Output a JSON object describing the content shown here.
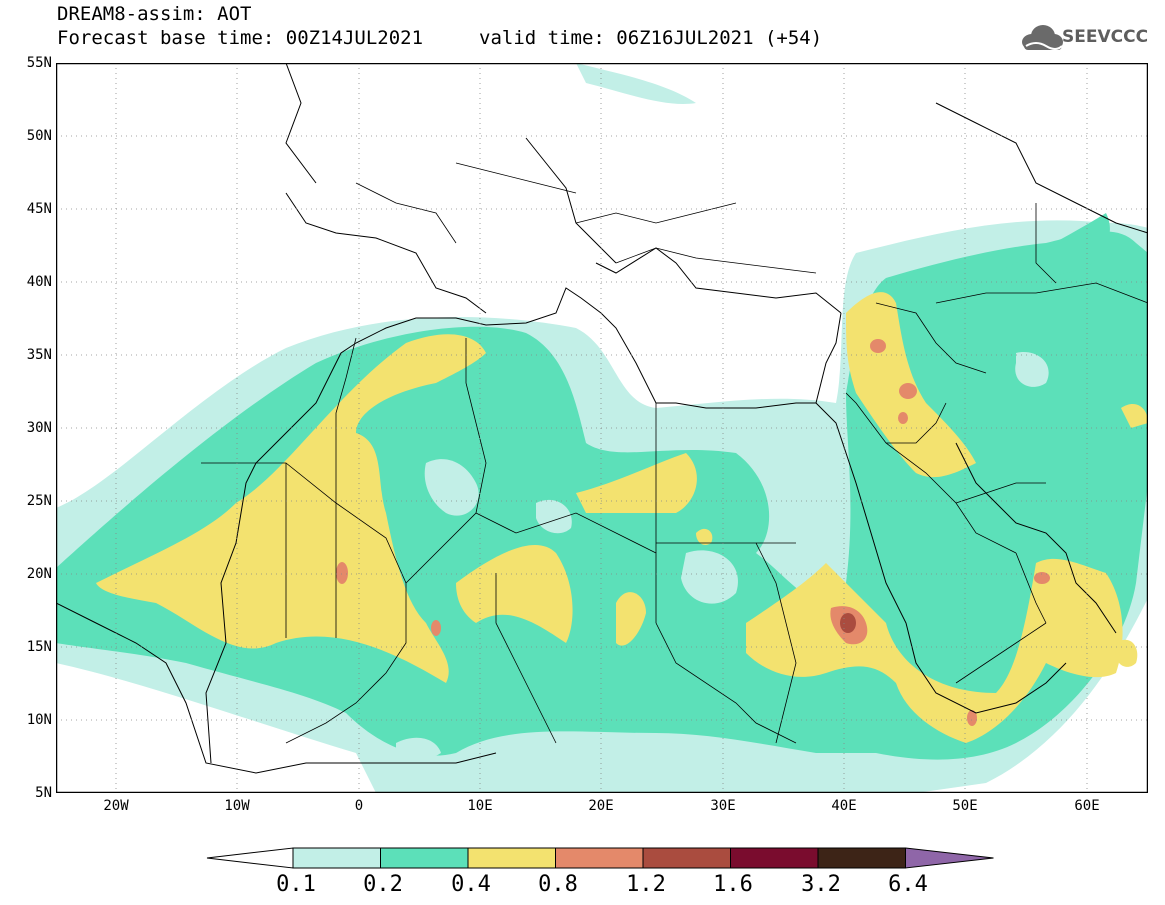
{
  "header": {
    "title": "DREAM8-assim: AOT",
    "base_time": "Forecast base time: 00Z14JUL2021",
    "valid_time": "valid time: 06Z16JUL2021 (+54)",
    "logo_text": "SEEVCCC"
  },
  "map": {
    "lon_range": [
      -25,
      65
    ],
    "lat_range": [
      5,
      55
    ],
    "lat_labels": [
      "55N",
      "50N",
      "45N",
      "40N",
      "35N",
      "30N",
      "25N",
      "20N",
      "15N",
      "10N",
      "5N"
    ],
    "lon_labels": [
      "20W",
      "10W",
      "0",
      "10E",
      "20E",
      "30E",
      "40E",
      "50E",
      "60E"
    ]
  },
  "legend": {
    "levels": [
      "0.1",
      "0.2",
      "0.4",
      "0.8",
      "1.2",
      "1.6",
      "3.2",
      "6.4"
    ],
    "colors": [
      "#ffffff",
      "#c2efe7",
      "#5ce0b9",
      "#f3e26f",
      "#e4896a",
      "#aa4c3f",
      "#7a0c2e",
      "#3d2417",
      "#8f66a8"
    ]
  }
}
